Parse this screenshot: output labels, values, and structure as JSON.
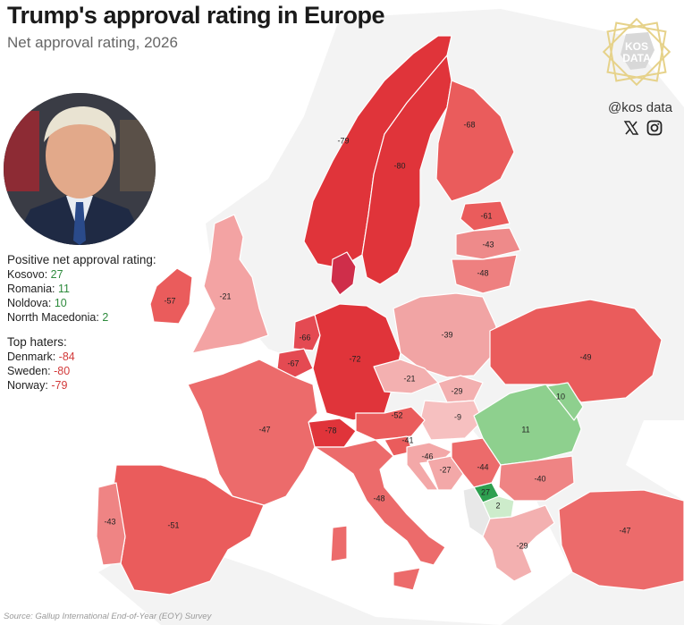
{
  "header": {
    "title": "Trump's approval rating in Europe",
    "subtitle": "Net approval rating, 2026"
  },
  "brand": {
    "logo_line1": "KOS",
    "logo_line2": "DATA",
    "handle": "@kos data",
    "icons": [
      "x-icon",
      "instagram-icon"
    ]
  },
  "legend": {
    "positive_heading": "Positive net approval rating:",
    "positive": [
      {
        "name": "Kosovo:",
        "value": "27"
      },
      {
        "name": "Romania:",
        "value": "11"
      },
      {
        "name": "Noldova:",
        "value": "10"
      },
      {
        "name": "Norrth Macedonia:",
        "value": "2"
      }
    ],
    "haters_heading": "Top haters:",
    "haters": [
      {
        "name": "Denmark:",
        "value": "-84"
      },
      {
        "name": "Sweden:",
        "value": "-80"
      },
      {
        "name": "Norway:",
        "value": "-79"
      }
    ]
  },
  "colors": {
    "dark_red": "#e0343a",
    "red": "#ea5c5c",
    "light_red": "#f2a0a0",
    "green": "#8ed08e",
    "dark_green": "#2ea050",
    "light_green": "#cdeccb",
    "background_land": "#f4f4f4"
  },
  "map_values": {
    "norway": "-79",
    "sweden": "-80",
    "finland": "-68",
    "estonia": "-61",
    "latvia": "-43",
    "lithuania": "-48",
    "uk": "-21",
    "ireland": "-57",
    "netherlands": "-66",
    "belgium": "-67",
    "germany": "-72",
    "poland": "-39",
    "ukraine": "-49",
    "czechia": "-21",
    "slovakia": "-29",
    "hungary": "-9",
    "austria": "-52",
    "switzerland": "-78",
    "france": "-47",
    "slovenia": "-41",
    "croatia": "-46",
    "bosnia": "-27",
    "serbia": "-44",
    "romania": "11",
    "moldova": "10",
    "bulgaria": "-40",
    "kosovo": "27",
    "north_macedonia": "2",
    "greece": "-29",
    "turkey": "-47",
    "italy": "-48",
    "spain": "-51",
    "portugal": "-43"
  },
  "source": "Source: Gallup International End-of-Year (EOY) Survey"
}
